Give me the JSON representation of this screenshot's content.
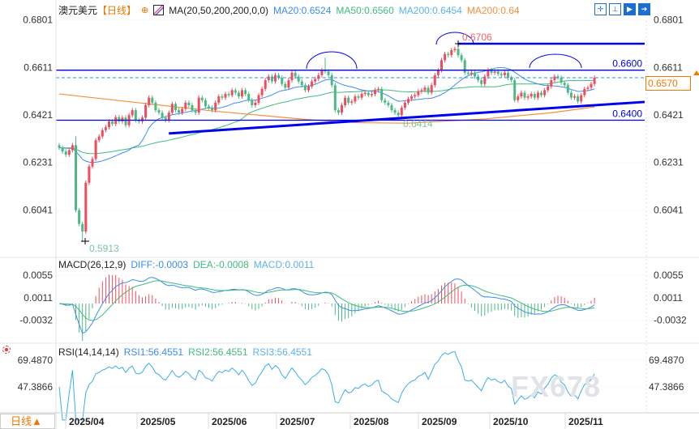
{
  "header": {
    "symbol": "澳元美元",
    "period_tag": "【日线】",
    "ma_label": "MA(20,50,200,200,0,0)",
    "ma20": "MA20:0.6524",
    "ma50": "MA50:0.6560",
    "ma200a": "MA200:0.6454",
    "ma200b": "MA200:0.64",
    "tools": [
      "crosshair-icon",
      "fit-icon",
      "play-icon",
      "export-icon"
    ]
  },
  "colors": {
    "up": "#ef4d5c",
    "down": "#4cb983",
    "ma20": "#3b8cf0",
    "ma50": "#3dbd7d",
    "ma200": "#f5903c",
    "drawing": "#0000ee",
    "dashed": "#2b8cf5",
    "accent": "#f07800"
  },
  "macd": {
    "label": "MACD(26,12,9)",
    "diff": "DIFF:-0.0003",
    "dea": "DEA:-0.0008",
    "macd": "MACD:0.0011",
    "ticks": [
      "0.0055",
      "0.0011",
      "-0.0032"
    ]
  },
  "rsi": {
    "label": "RSI(14,14,14)",
    "rsi1": "RSI1:56.4551",
    "rsi2": "RSI2:56.4551",
    "rsi3": "RSI3:56.4551",
    "ticks": [
      "69.4870",
      "47.3866"
    ]
  },
  "period_button": "日线▲",
  "price_tag": "0.6570",
  "watermark": "FX678",
  "chart_data": {
    "type": "candlestick",
    "title": "澳元美元",
    "y_ticks": [
      "0.6801",
      "0.6611",
      "0.6421",
      "0.6231",
      "0.6041"
    ],
    "x_ticks": [
      "2025/04",
      "2025/05",
      "2025/06",
      "2025/07",
      "2025/08",
      "2025/09",
      "2025/10",
      "2025/11"
    ],
    "closes": [
      0.629,
      0.6275,
      0.6262,
      0.628,
      0.63,
      0.604,
      0.5985,
      0.5955,
      0.615,
      0.6215,
      0.6245,
      0.632,
      0.6335,
      0.636,
      0.6372,
      0.6395,
      0.6385,
      0.6412,
      0.6395,
      0.641,
      0.638,
      0.642,
      0.644,
      0.64,
      0.6395,
      0.641,
      0.646,
      0.649,
      0.647,
      0.644,
      0.643,
      0.641,
      0.64,
      0.643,
      0.6465,
      0.644,
      0.643,
      0.6445,
      0.647,
      0.646,
      0.644,
      0.643,
      0.649,
      0.648,
      0.6455,
      0.645,
      0.644,
      0.647,
      0.6495,
      0.649,
      0.6505,
      0.65,
      0.652,
      0.651,
      0.6495,
      0.652,
      0.6505,
      0.648,
      0.646,
      0.647,
      0.65,
      0.6525,
      0.656,
      0.6575,
      0.6555,
      0.658,
      0.657,
      0.6545,
      0.653,
      0.656,
      0.659,
      0.6575,
      0.6555,
      0.654,
      0.652,
      0.6535,
      0.6555,
      0.6565,
      0.658,
      0.66,
      0.6595,
      0.658,
      0.654,
      0.644,
      0.643,
      0.646,
      0.649,
      0.647,
      0.6475,
      0.6495,
      0.649,
      0.6505,
      0.651,
      0.65,
      0.6505,
      0.652,
      0.6525,
      0.648,
      0.647,
      0.646,
      0.644,
      0.643,
      0.642,
      0.645,
      0.647,
      0.6485,
      0.6495,
      0.65,
      0.6515,
      0.652,
      0.653,
      0.651,
      0.654,
      0.658,
      0.66,
      0.664,
      0.6665,
      0.666,
      0.668,
      0.6685,
      0.666,
      0.664,
      0.659,
      0.6585,
      0.659,
      0.6575,
      0.656,
      0.6545,
      0.6575,
      0.66,
      0.659,
      0.6595,
      0.6585,
      0.658,
      0.659,
      0.657,
      0.656,
      0.648,
      0.6495,
      0.651,
      0.649,
      0.6495,
      0.6505,
      0.649,
      0.651,
      0.65,
      0.652,
      0.6535,
      0.656,
      0.6575,
      0.657,
      0.655,
      0.654,
      0.651,
      0.649,
      0.6495,
      0.6475,
      0.65,
      0.6525,
      0.653,
      0.6545,
      0.657
    ],
    "ma200_points": [
      [
        0,
        0.6505
      ],
      [
        46,
        0.6437
      ],
      [
        75,
        0.6402
      ],
      [
        90,
        0.639
      ],
      [
        105,
        0.6388
      ],
      [
        128,
        0.6405
      ],
      [
        148,
        0.643
      ],
      [
        161,
        0.6453
      ]
    ],
    "extremes": {
      "high": "0.6706",
      "low_recent": "0.6414",
      "low": "0.5913"
    },
    "levels": [
      {
        "label": "0.6600",
        "value": 0.66,
        "style": "solid"
      },
      {
        "label": "",
        "value": 0.657,
        "style": "dashed"
      },
      {
        "label": "",
        "value": 0.6706,
        "style": "thick"
      },
      {
        "label": "0.6400",
        "value": 0.64,
        "style": "solid"
      }
    ],
    "trendline": [
      {
        "index": 32,
        "price": 0.6347
      },
      {
        "index": 176,
        "price": 0.6473
      }
    ]
  }
}
